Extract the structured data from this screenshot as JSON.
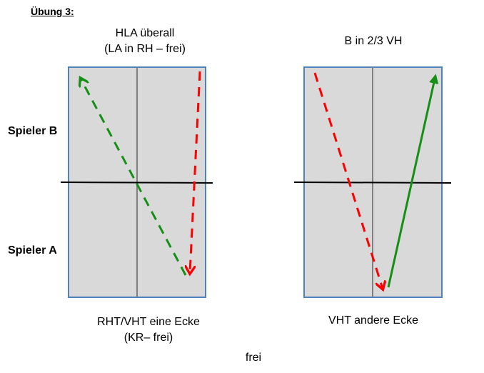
{
  "title": "Übung 3:",
  "players": {
    "top": "Spieler B",
    "bottom": "Spieler A"
  },
  "left_court": {
    "caption_top_line1": "HLA überall",
    "caption_top_line2": "(LA in RH – frei)",
    "caption_bottom_line1": "RHT/VHT eine Ecke",
    "caption_bottom_line2": "(KR– frei)"
  },
  "right_court": {
    "caption_top": "B in 2/3 VH",
    "caption_bottom": "VHT andere Ecke"
  },
  "bottom_caption": "frei",
  "colors": {
    "table_fill": "#d9d9d9",
    "table_border": "#4f81bd",
    "center_line": "#808080",
    "net": "#000000",
    "red_arrow": "#ff0000",
    "green_arrow": "#158f15"
  }
}
